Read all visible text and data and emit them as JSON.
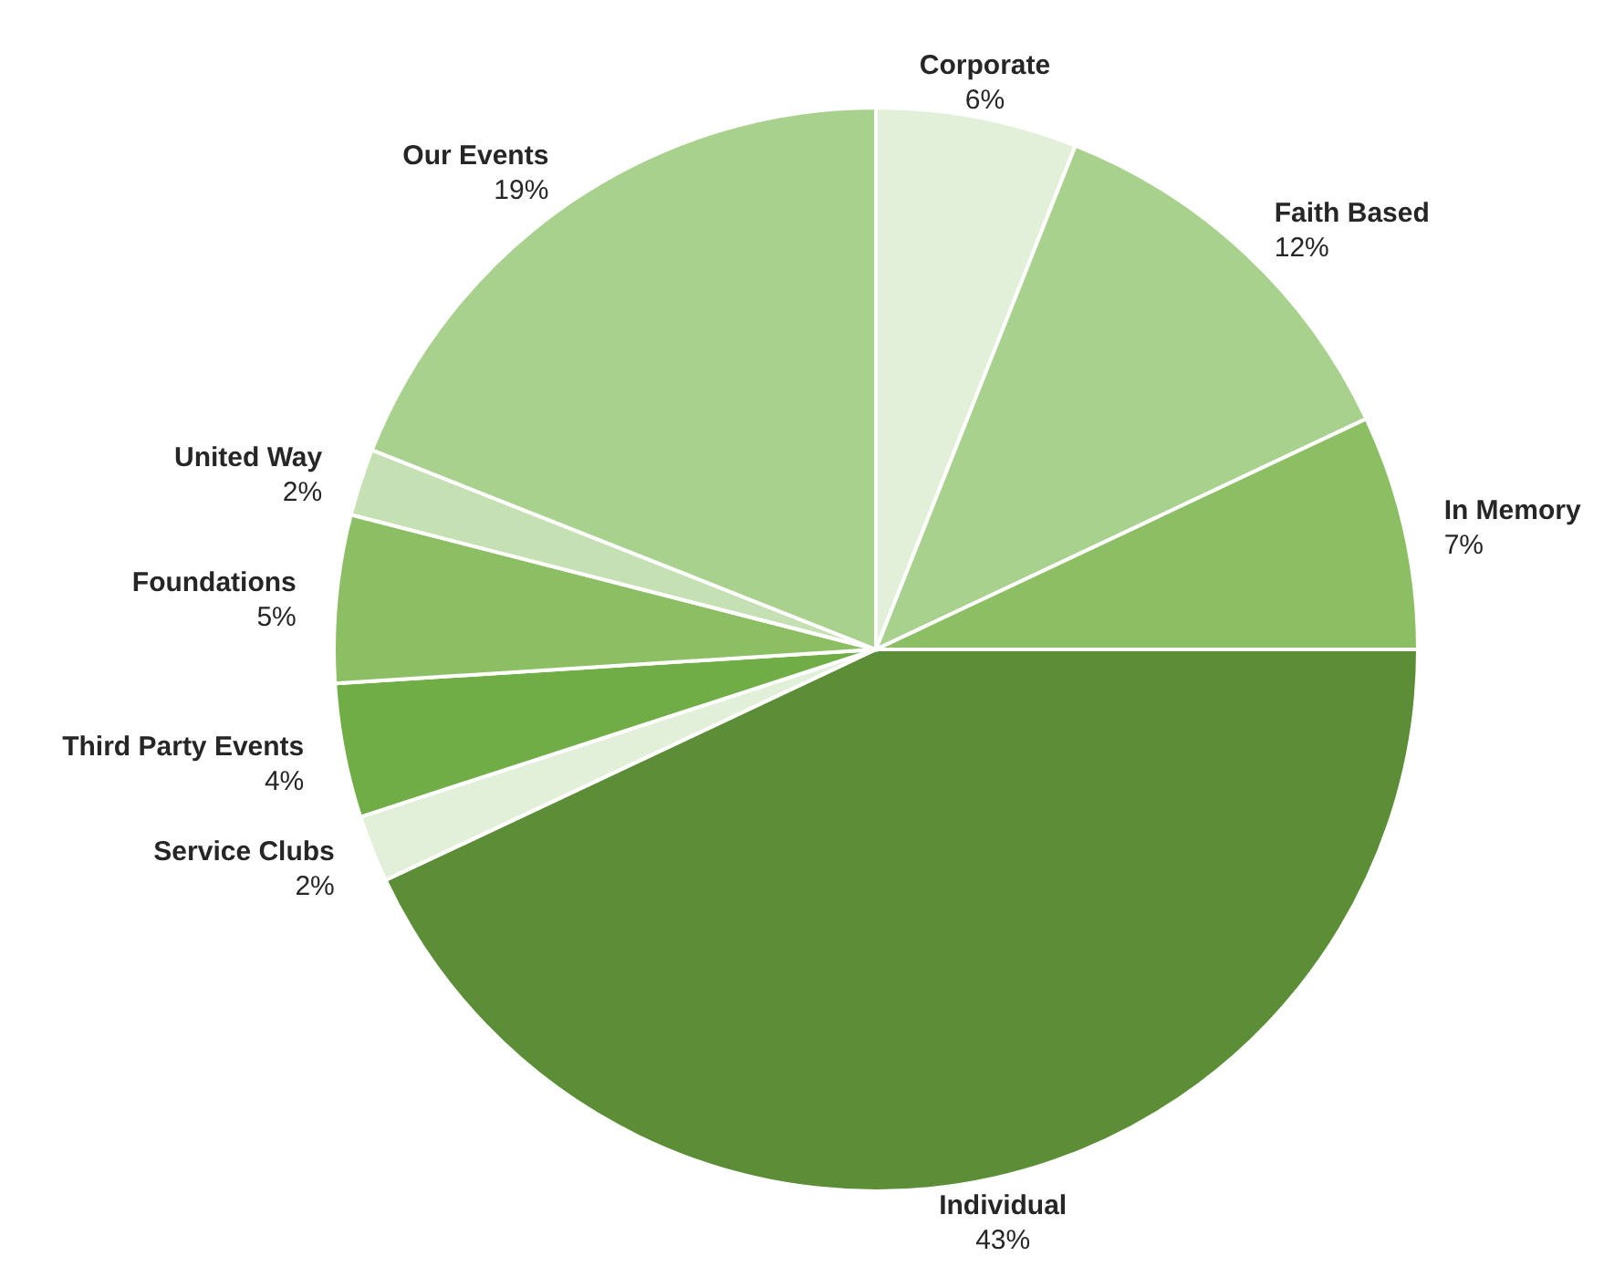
{
  "chart_data": {
    "type": "pie",
    "categories": [
      "Corporate",
      "Faith Based",
      "In Memory",
      "Individual",
      "Service Clubs",
      "Third Party Events",
      "Foundations",
      "United Way",
      "Our Events"
    ],
    "values": [
      6,
      12,
      7,
      43,
      2,
      4,
      5,
      2,
      19
    ],
    "value_labels": [
      "6%",
      "12%",
      "7%",
      "43%",
      "2%",
      "4%",
      "5%",
      "2%",
      "19%"
    ],
    "colors": [
      "#e2efd9",
      "#a9d18e",
      "#8cbf64",
      "#5b8e36",
      "#e2efd9",
      "#70ad47",
      "#8cbf64",
      "#c5e0b3",
      "#a9d18e"
    ],
    "legend": false
  }
}
